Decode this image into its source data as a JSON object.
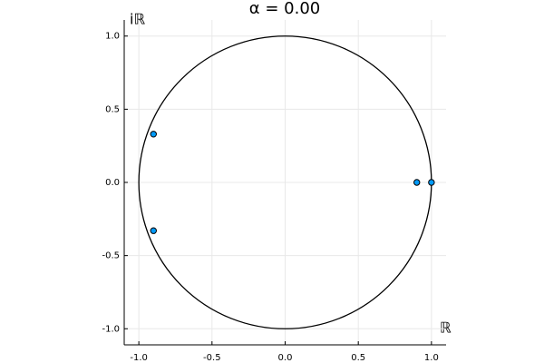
{
  "chart_data": {
    "type": "scatter",
    "title": "α = 0.00",
    "x_label": "ℝ",
    "y_label": "iℝ",
    "series": [
      {
        "color": "#009af9",
        "x": [
          1.0,
          0.9,
          -0.9,
          -0.9
        ],
        "values": [
          0,
          0,
          0.33,
          -0.33
        ]
      }
    ],
    "circle_radius": 1,
    "circle_color": "#000000",
    "xlim": [
      -1.1,
      1.1
    ],
    "ylim": [
      -1.11,
      1.11
    ],
    "xticks": [
      {
        "value": -1,
        "label": "-1.0"
      },
      -0.5,
      {
        "value": 0,
        "label": "0.0"
      },
      0.5,
      {
        "value": 1,
        "label": "1.0"
      }
    ],
    "yticks": [
      {
        "value": -1,
        "label": "-1.0"
      },
      -0.5,
      {
        "value": 0,
        "label": "0.0"
      },
      0.5,
      {
        "value": 1,
        "label": "1.0"
      }
    ],
    "grid": true
  }
}
